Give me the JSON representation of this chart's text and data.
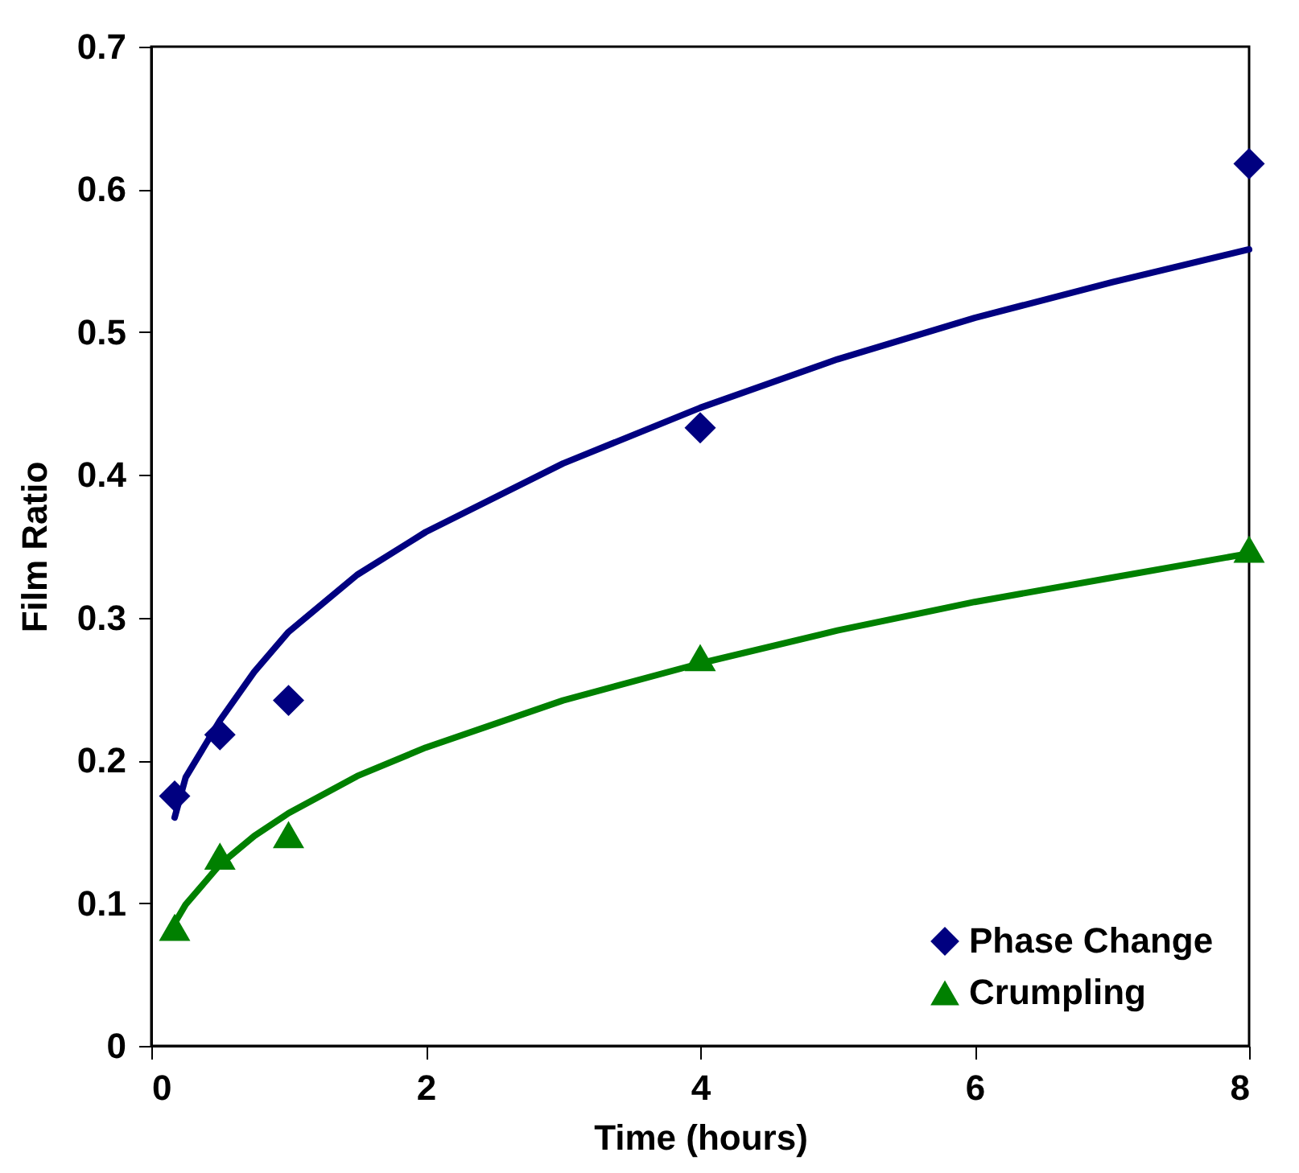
{
  "chart_data": {
    "type": "scatter",
    "xlabel": "Time (hours)",
    "ylabel": "Film Ratio",
    "xlim": [
      0,
      8
    ],
    "xticks": [
      0,
      2,
      4,
      6,
      8
    ],
    "ylim": [
      0,
      0.7
    ],
    "yticks": [
      0,
      0.1,
      0.2,
      0.3,
      0.4,
      0.5,
      0.6,
      0.7
    ],
    "grid": false,
    "legend": "bottom right",
    "series": [
      {
        "name": "Phase Change",
        "type": "scatter",
        "marker": "diamond",
        "color": "#000080",
        "x": [
          0.17,
          0.5,
          1,
          4,
          8
        ],
        "values": [
          0.175,
          0.218,
          0.242,
          0.433,
          0.618
        ]
      },
      {
        "name": "Crumpling",
        "type": "scatter",
        "marker": "triangle",
        "color": "#008000",
        "x": [
          0.17,
          0.5,
          1,
          4,
          8
        ],
        "values": [
          0.083,
          0.133,
          0.148,
          0.272,
          0.348
        ]
      },
      {
        "type": "line",
        "color": "#000080",
        "x": [
          0.17,
          0.25,
          0.5,
          0.75,
          1,
          1.5,
          2,
          3,
          4,
          5,
          6,
          7,
          8
        ],
        "values": [
          0.16,
          0.188,
          0.228,
          0.262,
          0.29,
          0.33,
          0.36,
          0.408,
          0.447,
          0.481,
          0.51,
          0.535,
          0.558
        ]
      },
      {
        "type": "line",
        "color": "#008000",
        "x": [
          0.17,
          0.25,
          0.5,
          0.75,
          1,
          1.5,
          2,
          3,
          4,
          5,
          6,
          7,
          8
        ],
        "values": [
          0.086,
          0.099,
          0.127,
          0.147,
          0.163,
          0.189,
          0.209,
          0.242,
          0.268,
          0.291,
          0.311,
          0.328,
          0.345
        ]
      }
    ]
  }
}
